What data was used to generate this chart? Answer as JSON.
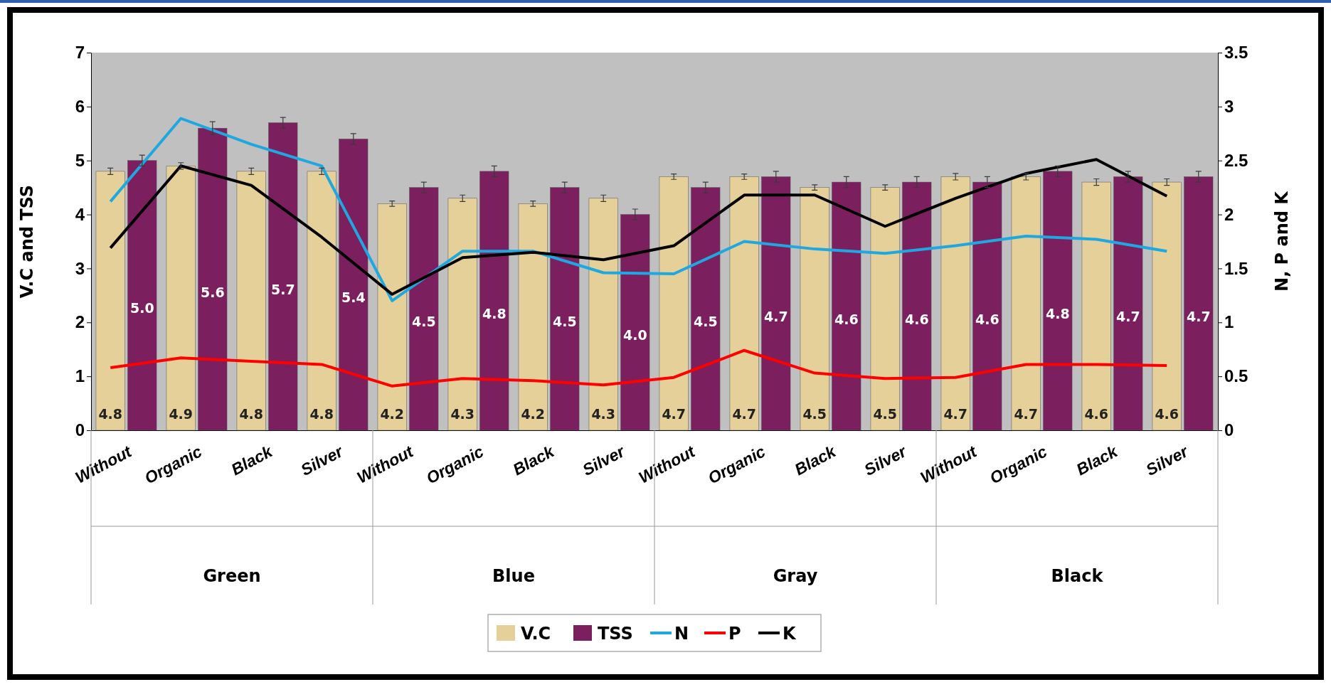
{
  "chart_data": {
    "type": "bar",
    "ylabel": "V.C and TSS",
    "y2label": "N, P and K",
    "categories": [
      "Without",
      "Organic",
      "Black",
      "Silver",
      "Without",
      "Organic",
      "Black",
      "Silver",
      "Without",
      "Organic",
      "Black",
      "Silver",
      "Without",
      "Organic",
      "Black",
      "Silver"
    ],
    "annotations": [
      "Green",
      "Blue",
      "Gray",
      "Black"
    ],
    "series": [
      {
        "name": "V.C",
        "color": "#e6d09a",
        "values": [
          4.8,
          4.9,
          4.8,
          4.8,
          4.2,
          4.3,
          4.2,
          4.3,
          4.7,
          4.7,
          4.5,
          4.5,
          4.7,
          4.7,
          4.6,
          4.6
        ],
        "value_labels": [
          "4.8",
          "4.9",
          "4.8",
          "4.8",
          "4.2",
          "4.3",
          "4.2",
          "4.3",
          "4.7",
          "4.7",
          "4.5",
          "4.5",
          "4.7",
          "4.7",
          "4.6",
          "4.6"
        ],
        "errors": [
          0.06,
          0.06,
          0.06,
          0.06,
          0.05,
          0.06,
          0.05,
          0.06,
          0.05,
          0.05,
          0.05,
          0.05,
          0.06,
          0.06,
          0.06,
          0.06
        ]
      },
      {
        "name": "TSS",
        "color": "#7b1f5e",
        "values": [
          5.0,
          5.6,
          5.7,
          5.4,
          4.5,
          4.8,
          4.5,
          4.0,
          4.5,
          4.7,
          4.6,
          4.6,
          4.6,
          4.8,
          4.7,
          4.7
        ],
        "value_labels": [
          "5.0",
          "5.6",
          "5.7",
          "5.4",
          "4.5",
          "4.8",
          "4.5",
          "4.0",
          "4.5",
          "4.7",
          "4.6",
          "4.6",
          "4.6",
          "4.8",
          "4.7",
          "4.7"
        ],
        "errors": [
          0.1,
          0.12,
          0.1,
          0.1,
          0.1,
          0.1,
          0.1,
          0.1,
          0.1,
          0.1,
          0.1,
          0.1,
          0.1,
          0.1,
          0.1,
          0.1
        ]
      },
      {
        "name": "N",
        "type": "line",
        "axis": "y2",
        "color": "#1fa8e0",
        "values": [
          2.12,
          2.89,
          2.65,
          2.45,
          1.2,
          1.66,
          1.66,
          1.46,
          1.45,
          1.75,
          1.68,
          1.64,
          1.71,
          1.8,
          1.77,
          1.66
        ]
      },
      {
        "name": "P",
        "type": "line",
        "axis": "y2",
        "color": "#ff0000",
        "values": [
          0.58,
          0.67,
          0.64,
          0.61,
          0.41,
          0.48,
          0.46,
          0.42,
          0.49,
          0.74,
          0.53,
          0.48,
          0.49,
          0.61,
          0.61,
          0.6
        ]
      },
      {
        "name": "K",
        "type": "line",
        "axis": "y2",
        "color": "#000000",
        "values": [
          1.69,
          2.45,
          2.27,
          1.79,
          1.26,
          1.6,
          1.65,
          1.58,
          1.71,
          2.18,
          2.18,
          1.89,
          2.15,
          2.38,
          2.51,
          2.17
        ]
      }
    ],
    "ylim": [
      0,
      7
    ],
    "yticks": [
      0,
      1,
      2,
      3,
      4,
      5,
      6,
      7
    ],
    "y2lim": [
      0,
      3.5
    ],
    "y2ticks": [
      0,
      0.5,
      1,
      1.5,
      2,
      2.5,
      3,
      3.5
    ],
    "legend": "bottom"
  }
}
